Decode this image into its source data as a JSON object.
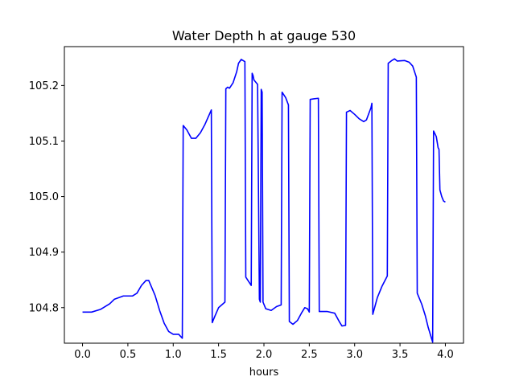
{
  "chart_data": {
    "type": "line",
    "title": "Water Depth h at gauge 530",
    "xlabel": "hours",
    "ylabel": "",
    "xlim": [
      -0.2,
      4.2
    ],
    "ylim": [
      104.736,
      105.27
    ],
    "xticks": [
      0.0,
      0.5,
      1.0,
      1.5,
      2.0,
      2.5,
      3.0,
      3.5,
      4.0
    ],
    "xtick_labels": [
      "0.0",
      "0.5",
      "1.0",
      "1.5",
      "2.0",
      "2.5",
      "3.0",
      "3.5",
      "4.0"
    ],
    "yticks": [
      104.8,
      104.9,
      105.0,
      105.1,
      105.2
    ],
    "ytick_labels": [
      "104.8",
      "104.9",
      "105.0",
      "105.1",
      "105.2"
    ],
    "grid": false,
    "series": [
      {
        "name": "",
        "color": "#0000ff",
        "points": [
          [
            0.0,
            104.792
          ],
          [
            0.1,
            104.792
          ],
          [
            0.2,
            104.797
          ],
          [
            0.3,
            104.807
          ],
          [
            0.35,
            104.815
          ],
          [
            0.45,
            104.821
          ],
          [
            0.55,
            104.821
          ],
          [
            0.6,
            104.826
          ],
          [
            0.65,
            104.84
          ],
          [
            0.7,
            104.849
          ],
          [
            0.73,
            104.849
          ],
          [
            0.8,
            104.822
          ],
          [
            0.85,
            104.795
          ],
          [
            0.9,
            104.772
          ],
          [
            0.95,
            104.757
          ],
          [
            1.0,
            104.752
          ],
          [
            1.06,
            104.752
          ],
          [
            1.1,
            104.745
          ],
          [
            1.11,
            105.128
          ],
          [
            1.15,
            105.12
          ],
          [
            1.2,
            105.105
          ],
          [
            1.25,
            105.105
          ],
          [
            1.3,
            105.115
          ],
          [
            1.35,
            105.13
          ],
          [
            1.42,
            105.156
          ],
          [
            1.43,
            104.773
          ],
          [
            1.46,
            104.785
          ],
          [
            1.5,
            104.8
          ],
          [
            1.57,
            104.81
          ],
          [
            1.58,
            105.194
          ],
          [
            1.6,
            105.197
          ],
          [
            1.62,
            105.195
          ],
          [
            1.66,
            105.205
          ],
          [
            1.7,
            105.225
          ],
          [
            1.72,
            105.24
          ],
          [
            1.75,
            105.247
          ],
          [
            1.79,
            105.243
          ],
          [
            1.8,
            104.855
          ],
          [
            1.86,
            104.84
          ],
          [
            1.87,
            105.222
          ],
          [
            1.88,
            105.218
          ],
          [
            1.89,
            105.21
          ],
          [
            1.93,
            105.202
          ],
          [
            1.95,
            104.815
          ],
          [
            1.96,
            104.81
          ],
          [
            1.97,
            105.193
          ],
          [
            1.98,
            105.188
          ],
          [
            1.99,
            104.81
          ],
          [
            2.02,
            104.798
          ],
          [
            2.08,
            104.795
          ],
          [
            2.14,
            104.802
          ],
          [
            2.19,
            104.805
          ],
          [
            2.2,
            105.188
          ],
          [
            2.24,
            105.178
          ],
          [
            2.27,
            105.165
          ],
          [
            2.28,
            104.775
          ],
          [
            2.32,
            104.77
          ],
          [
            2.37,
            104.777
          ],
          [
            2.42,
            104.792
          ],
          [
            2.45,
            104.8
          ],
          [
            2.48,
            104.798
          ],
          [
            2.5,
            104.792
          ],
          [
            2.51,
            105.175
          ],
          [
            2.55,
            105.176
          ],
          [
            2.6,
            105.177
          ],
          [
            2.61,
            104.793
          ],
          [
            2.7,
            104.793
          ],
          [
            2.78,
            104.79
          ],
          [
            2.83,
            104.775
          ],
          [
            2.86,
            104.767
          ],
          [
            2.9,
            104.768
          ],
          [
            2.91,
            105.152
          ],
          [
            2.95,
            105.155
          ],
          [
            3.0,
            105.148
          ],
          [
            3.05,
            105.14
          ],
          [
            3.1,
            105.135
          ],
          [
            3.13,
            105.138
          ],
          [
            3.18,
            105.16
          ],
          [
            3.19,
            105.168
          ],
          [
            3.2,
            104.788
          ],
          [
            3.25,
            104.818
          ],
          [
            3.3,
            104.838
          ],
          [
            3.36,
            104.857
          ],
          [
            3.37,
            105.24
          ],
          [
            3.41,
            105.245
          ],
          [
            3.44,
            105.248
          ],
          [
            3.47,
            105.244
          ],
          [
            3.55,
            105.245
          ],
          [
            3.6,
            105.242
          ],
          [
            3.64,
            105.235
          ],
          [
            3.68,
            105.215
          ],
          [
            3.69,
            104.826
          ],
          [
            3.74,
            104.806
          ],
          [
            3.78,
            104.785
          ],
          [
            3.81,
            104.765
          ],
          [
            3.86,
            104.738
          ],
          [
            3.87,
            105.118
          ],
          [
            3.9,
            105.108
          ],
          [
            3.92,
            105.088
          ],
          [
            3.93,
            105.085
          ],
          [
            3.94,
            105.012
          ],
          [
            3.96,
            105.0
          ],
          [
            3.98,
            104.992
          ],
          [
            4.0,
            104.99
          ]
        ]
      }
    ]
  }
}
